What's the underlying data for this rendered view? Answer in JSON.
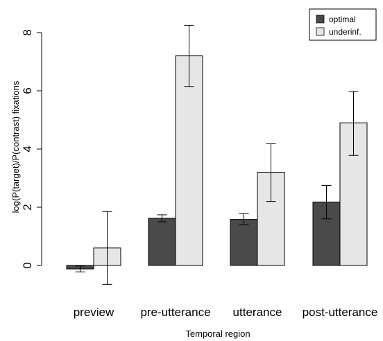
{
  "chart_data": {
    "type": "bar",
    "categories": [
      "preview",
      "pre-utterance",
      "utterance",
      "post-utterance"
    ],
    "series": [
      {
        "name": "optimal",
        "color": "#4a4a4a",
        "values": [
          -0.12,
          1.62,
          1.58,
          2.18
        ],
        "error_low": [
          -0.22,
          1.5,
          1.4,
          1.6
        ],
        "error_high": [
          -0.02,
          1.74,
          1.78,
          2.75
        ]
      },
      {
        "name": "underinf.",
        "color": "#e6e6e6",
        "values": [
          0.6,
          7.2,
          3.2,
          4.9
        ],
        "error_low": [
          -0.65,
          6.15,
          2.2,
          3.78
        ],
        "error_high": [
          1.85,
          8.25,
          4.18,
          5.98
        ]
      }
    ],
    "xlabel": "Temporal region",
    "ylabel": "log(P(target)/P(contrast) fixations",
    "ylim": [
      -0.3,
      8.6
    ],
    "yticks": [
      0,
      2,
      4,
      6,
      8
    ],
    "legend_position": "top-right",
    "grid": false
  }
}
